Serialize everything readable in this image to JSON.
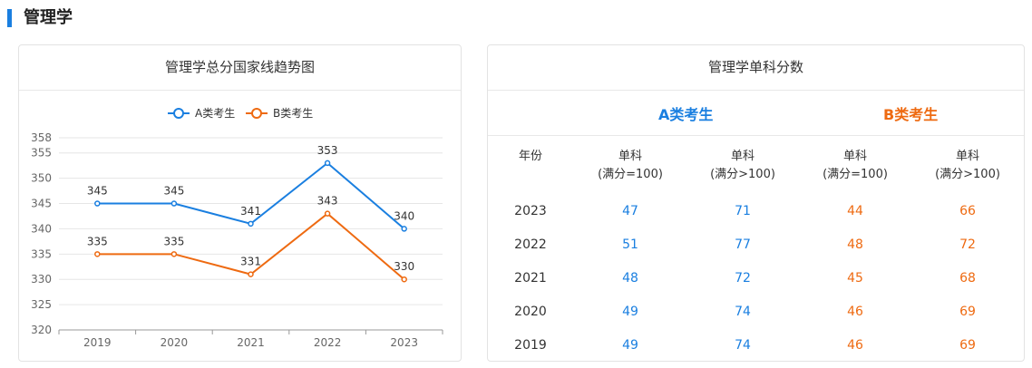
{
  "section": {
    "title": "管理学"
  },
  "colors": {
    "a": "#1a7fe0",
    "b": "#ee6a11",
    "accent": "#1a7fe0"
  },
  "chart_data": {
    "type": "line",
    "title": "管理学总分国家线趋势图",
    "categories": [
      "2019",
      "2020",
      "2021",
      "2022",
      "2023"
    ],
    "series": [
      {
        "name": "A类考生",
        "color": "#1a7fe0",
        "values": [
          345,
          345,
          341,
          353,
          340
        ]
      },
      {
        "name": "B类考生",
        "color": "#ee6a11",
        "values": [
          335,
          335,
          331,
          343,
          330
        ]
      }
    ],
    "y_ticks": [
      320,
      325,
      330,
      335,
      340,
      345,
      350,
      355,
      358
    ],
    "ylim": [
      320,
      358
    ],
    "legend_position": "top-center",
    "grid": true
  },
  "table": {
    "title": "管理学单科分数",
    "group_a": "A类考生",
    "group_b": "B类考生",
    "year_header": "年份",
    "col_headers": [
      {
        "line1": "单科",
        "line2": "(满分=100)"
      },
      {
        "line1": "单科",
        "line2": "(满分>100)"
      },
      {
        "line1": "单科",
        "line2": "(满分=100)"
      },
      {
        "line1": "单科",
        "line2": "(满分>100)"
      }
    ],
    "rows": [
      {
        "year": "2023",
        "a100": "47",
        "a_gt100": "71",
        "b100": "44",
        "b_gt100": "66"
      },
      {
        "year": "2022",
        "a100": "51",
        "a_gt100": "77",
        "b100": "48",
        "b_gt100": "72"
      },
      {
        "year": "2021",
        "a100": "48",
        "a_gt100": "72",
        "b100": "45",
        "b_gt100": "68"
      },
      {
        "year": "2020",
        "a100": "49",
        "a_gt100": "74",
        "b100": "46",
        "b_gt100": "69"
      },
      {
        "year": "2019",
        "a100": "49",
        "a_gt100": "74",
        "b100": "46",
        "b_gt100": "69"
      }
    ]
  }
}
